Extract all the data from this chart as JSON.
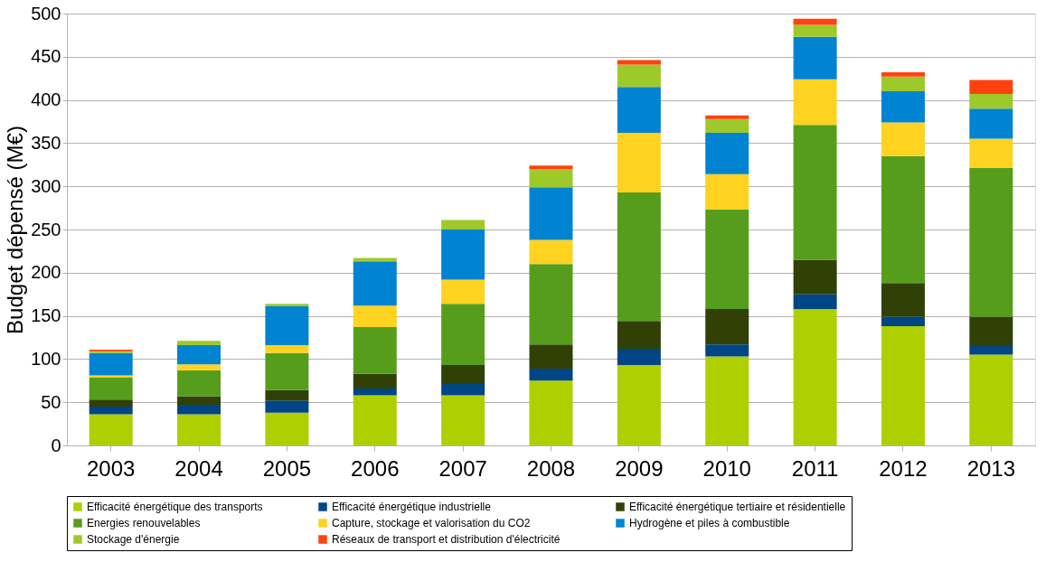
{
  "chart_data": {
    "type": "bar",
    "stacked": true,
    "ylabel": "Budget dépensé (M€)",
    "categories": [
      "2003",
      "2004",
      "2005",
      "2006",
      "2007",
      "2008",
      "2009",
      "2010",
      "2011",
      "2012",
      "2013"
    ],
    "series": [
      {
        "name": "Efficacité énergétique des transports",
        "color": "#aecf00",
        "values": [
          36,
          36,
          38,
          58,
          58,
          75,
          93,
          103,
          158,
          138,
          105
        ]
      },
      {
        "name": "Efficacité énergétique industrielle",
        "color": "#004586",
        "values": [
          9,
          11,
          14,
          8,
          13,
          14,
          19,
          14,
          17,
          11,
          10
        ]
      },
      {
        "name": "Efficacité énergétique tertiaire et résidentielle",
        "color": "#314004",
        "values": [
          8,
          10,
          12,
          17,
          22,
          28,
          32,
          41,
          40,
          39,
          34
        ]
      },
      {
        "name": "Energies renouvelables",
        "color": "#579d1c",
        "values": [
          26,
          30,
          43,
          54,
          71,
          93,
          149,
          115,
          156,
          147,
          172
        ]
      },
      {
        "name": "Capture, stockage et valorisation du CO2",
        "color": "#ffd320",
        "values": [
          2,
          7,
          9,
          25,
          28,
          28,
          69,
          41,
          53,
          39,
          34
        ]
      },
      {
        "name": "Hydrogène et piles à combustible",
        "color": "#0084d1",
        "values": [
          26,
          22,
          45,
          51,
          58,
          61,
          53,
          48,
          49,
          36,
          35
        ]
      },
      {
        "name": "Stockage d'énergie",
        "color": "#9ec92a",
        "values": [
          2,
          5,
          3,
          4,
          11,
          21,
          26,
          16,
          14,
          17,
          17
        ]
      },
      {
        "name": "Réseaux de transport et distribution d'électricité",
        "color": "#ff420e",
        "values": [
          2,
          0,
          0,
          0,
          0,
          4,
          5,
          4,
          7,
          5,
          16
        ]
      }
    ],
    "ylim": [
      0,
      500
    ],
    "yticks": [
      0,
      50,
      100,
      150,
      200,
      250,
      300,
      350,
      400,
      450,
      500
    ],
    "grid": "y",
    "legend": "bottom"
  }
}
